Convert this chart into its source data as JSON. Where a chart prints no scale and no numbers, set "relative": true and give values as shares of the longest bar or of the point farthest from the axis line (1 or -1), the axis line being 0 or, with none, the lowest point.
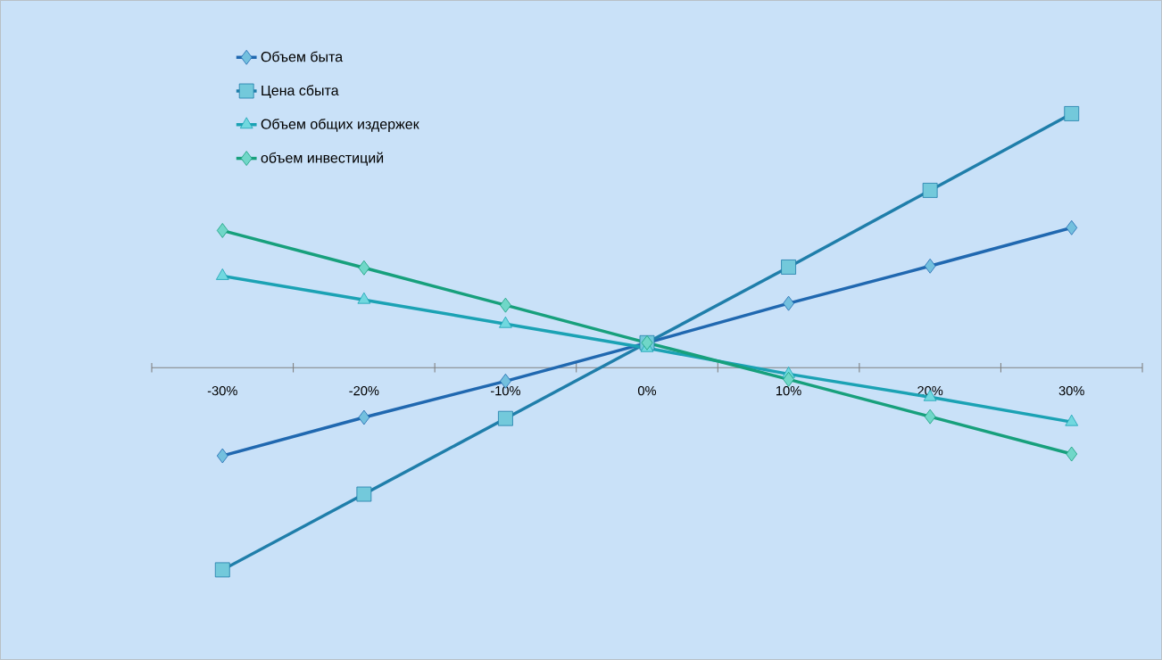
{
  "chart_data": {
    "type": "line",
    "relative": true,
    "categories": [
      "-30%",
      "-20%",
      "-10%",
      "0%",
      "10%",
      "20%",
      "30%"
    ],
    "series": [
      {
        "name": "Объем быта",
        "color": "#2068b0",
        "marker": "diamond",
        "values": [
          -0.347,
          -0.196,
          -0.053,
          0.098,
          0.253,
          0.4,
          0.551
        ]
      },
      {
        "name": "Цена сбыта",
        "color": "#1f7eaa",
        "marker": "square",
        "values": [
          -0.796,
          -0.498,
          -0.2,
          0.098,
          0.396,
          0.698,
          1
        ]
      },
      {
        "name": "Объем общих издержек",
        "color": "#1ba2b4",
        "marker": "triangle",
        "values": [
          0.361,
          0.267,
          0.172,
          0.077,
          -0.025,
          -0.116,
          -0.214
        ]
      },
      {
        "name": "объем инвестиций",
        "color": "#17a07c",
        "marker": "diamond",
        "values": [
          0.54,
          0.393,
          0.246,
          0.098,
          -0.046,
          -0.193,
          -0.34
        ]
      }
    ],
    "legend": "top left",
    "line_style": "solid"
  }
}
